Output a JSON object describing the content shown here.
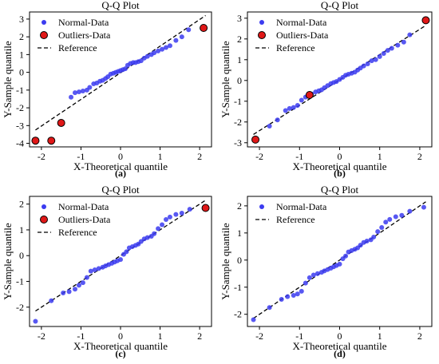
{
  "chart_data": [
    {
      "type": "scatter",
      "panel": "(a)",
      "title": "Q-Q Plot",
      "xlabel": "X-Theoretical quantile",
      "ylabel": "Y-Sample quantile",
      "xlim": [
        -2.3,
        2.3
      ],
      "ylim": [
        -4.2,
        3.4
      ],
      "xticks": [
        -2,
        -1,
        0,
        1,
        2
      ],
      "yticks": [
        -4,
        -3,
        -2,
        -1,
        0,
        1,
        2,
        3
      ],
      "legend_position": "upper-left",
      "series": [
        {
          "name": "Normal-Data",
          "color": "#3b3bf0",
          "x": [
            -1.25,
            -1.15,
            -1.05,
            -0.95,
            -0.85,
            -0.78,
            -0.68,
            -0.6,
            -0.52,
            -0.45,
            -0.38,
            -0.32,
            -0.25,
            -0.18,
            -0.12,
            -0.06,
            0,
            0.06,
            0.12,
            0.18,
            0.25,
            0.32,
            0.38,
            0.45,
            0.52,
            0.6,
            0.68,
            0.78,
            0.85,
            0.95,
            1.05,
            1.15,
            1.25,
            1.4,
            1.55,
            1.72
          ],
          "y": [
            -1.4,
            -1.15,
            -1.1,
            -1.05,
            -1.0,
            -0.85,
            -0.65,
            -0.6,
            -0.5,
            -0.45,
            -0.35,
            -0.25,
            -0.1,
            -0.05,
            0.0,
            0.05,
            0.1,
            0.15,
            0.2,
            0.4,
            0.5,
            0.55,
            0.55,
            0.6,
            0.65,
            0.8,
            0.9,
            1.0,
            1.1,
            1.2,
            1.3,
            1.4,
            1.5,
            1.8,
            2.0,
            2.4
          ]
        },
        {
          "name": "Outliers-Data",
          "color": "#e01818",
          "x": [
            -2.15,
            -1.75,
            -1.5,
            2.1
          ],
          "y": [
            -3.85,
            -3.85,
            -2.85,
            2.5
          ]
        }
      ],
      "reference_line": {
        "name": "Reference",
        "x": [
          -2.15,
          2.15
        ],
        "y": [
          -3.25,
          3.2
        ]
      }
    },
    {
      "type": "scatter",
      "panel": "(b)",
      "title": "Q-Q Plot",
      "xlabel": "X-Theoretical quantile",
      "ylabel": "Y-Sample quantile",
      "xlim": [
        -2.3,
        2.3
      ],
      "ylim": [
        -3.2,
        3.3
      ],
      "xticks": [
        -2,
        -1,
        0,
        1,
        2
      ],
      "yticks": [
        -3,
        -2,
        -1,
        0,
        1,
        2,
        3
      ],
      "legend_position": "upper-left",
      "series": [
        {
          "name": "Normal-Data",
          "color": "#3b3bf0",
          "x": [
            -1.75,
            -1.55,
            -1.35,
            -1.25,
            -1.15,
            -1.05,
            -0.95,
            -0.85,
            -0.7,
            -0.6,
            -0.52,
            -0.45,
            -0.38,
            -0.3,
            -0.22,
            -0.15,
            -0.08,
            0,
            0.08,
            0.15,
            0.22,
            0.3,
            0.38,
            0.45,
            0.52,
            0.6,
            0.7,
            0.8,
            0.9,
            1.0,
            1.1,
            1.2,
            1.3,
            1.45,
            1.6,
            1.75
          ],
          "y": [
            -2.2,
            -1.9,
            -1.45,
            -1.35,
            -1.3,
            -1.2,
            -0.95,
            -0.8,
            -0.65,
            -0.55,
            -0.5,
            -0.45,
            -0.35,
            -0.25,
            -0.15,
            -0.1,
            -0.05,
            0.05,
            0.15,
            0.25,
            0.3,
            0.35,
            0.4,
            0.5,
            0.6,
            0.7,
            0.8,
            0.95,
            1.0,
            1.15,
            1.3,
            1.45,
            1.55,
            1.7,
            1.85,
            2.2
          ]
        },
        {
          "name": "Outliers-Data",
          "color": "#e01818",
          "x": [
            -2.1,
            -0.75,
            2.15
          ],
          "y": [
            -2.85,
            -0.7,
            2.9
          ]
        }
      ],
      "reference_line": {
        "name": "Reference",
        "x": [
          -2.15,
          2.15
        ],
        "y": [
          -2.6,
          2.65
        ]
      }
    },
    {
      "type": "scatter",
      "panel": "(c)",
      "title": "Q-Q Plot",
      "xlabel": "X-Theoretical quantile",
      "ylabel": "Y-Sample quantile",
      "xlim": [
        -2.3,
        2.3
      ],
      "ylim": [
        -2.75,
        2.3
      ],
      "xticks": [
        -2,
        -1,
        0,
        1,
        2
      ],
      "yticks": [
        -2,
        -1,
        0,
        1,
        2
      ],
      "legend_position": "upper-left",
      "series": [
        {
          "name": "Normal-Data",
          "color": "#3b3bf0",
          "x": [
            -2.15,
            -1.75,
            -1.45,
            -1.3,
            -1.15,
            -1.05,
            -0.95,
            -0.85,
            -0.75,
            -0.65,
            -0.55,
            -0.45,
            -0.38,
            -0.3,
            -0.22,
            -0.15,
            -0.08,
            0,
            0.08,
            0.15,
            0.22,
            0.3,
            0.38,
            0.45,
            0.52,
            0.6,
            0.68,
            0.78,
            0.85,
            0.95,
            1.05,
            1.15,
            1.25,
            1.4,
            1.55,
            1.75
          ],
          "y": [
            -2.55,
            -1.75,
            -1.45,
            -1.4,
            -1.3,
            -1.15,
            -1.05,
            -0.85,
            -0.6,
            -0.55,
            -0.5,
            -0.45,
            -0.4,
            -0.35,
            -0.3,
            -0.25,
            -0.2,
            -0.15,
            0.05,
            0.15,
            0.3,
            0.35,
            0.4,
            0.45,
            0.55,
            0.65,
            0.7,
            0.75,
            0.85,
            1.05,
            1.2,
            1.4,
            1.5,
            1.6,
            1.65,
            1.8
          ]
        },
        {
          "name": "Outliers-Data",
          "color": "#e01818",
          "x": [
            2.15
          ],
          "y": [
            1.85
          ]
        }
      ],
      "reference_line": {
        "name": "Reference",
        "x": [
          -2.15,
          2.15
        ],
        "y": [
          -2.15,
          2.15
        ]
      }
    },
    {
      "type": "scatter",
      "panel": "(d)",
      "title": "Q-Q Plot",
      "xlabel": "X-Theoretical quantile",
      "ylabel": "Y-Sample quantile",
      "xlim": [
        -2.3,
        2.3
      ],
      "ylim": [
        -2.45,
        2.35
      ],
      "xticks": [
        -2,
        -1,
        0,
        1,
        2
      ],
      "yticks": [
        -2,
        -1,
        0,
        1,
        2
      ],
      "legend_position": "upper-left",
      "series": [
        {
          "name": "Normal-Data",
          "color": "#3b3bf0",
          "x": [
            -2.15,
            -1.75,
            -1.45,
            -1.3,
            -1.15,
            -1.05,
            -0.95,
            -0.85,
            -0.75,
            -0.65,
            -0.55,
            -0.45,
            -0.38,
            -0.3,
            -0.22,
            -0.15,
            -0.08,
            0,
            0.08,
            0.15,
            0.22,
            0.3,
            0.38,
            0.45,
            0.52,
            0.6,
            0.68,
            0.78,
            0.85,
            0.95,
            1.05,
            1.15,
            1.25,
            1.4,
            1.55,
            1.75,
            2.1
          ],
          "y": [
            -2.2,
            -1.75,
            -1.45,
            -1.35,
            -1.3,
            -1.25,
            -1.15,
            -0.85,
            -0.65,
            -0.55,
            -0.5,
            -0.45,
            -0.4,
            -0.35,
            -0.3,
            -0.25,
            -0.2,
            -0.15,
            0.05,
            0.15,
            0.3,
            0.35,
            0.4,
            0.45,
            0.55,
            0.65,
            0.7,
            0.75,
            0.85,
            1.05,
            1.2,
            1.4,
            1.5,
            1.6,
            1.65,
            1.8,
            1.95
          ]
        }
      ],
      "reference_line": {
        "name": "Reference",
        "x": [
          -2.15,
          2.15
        ],
        "y": [
          -2.15,
          2.15
        ]
      }
    }
  ]
}
